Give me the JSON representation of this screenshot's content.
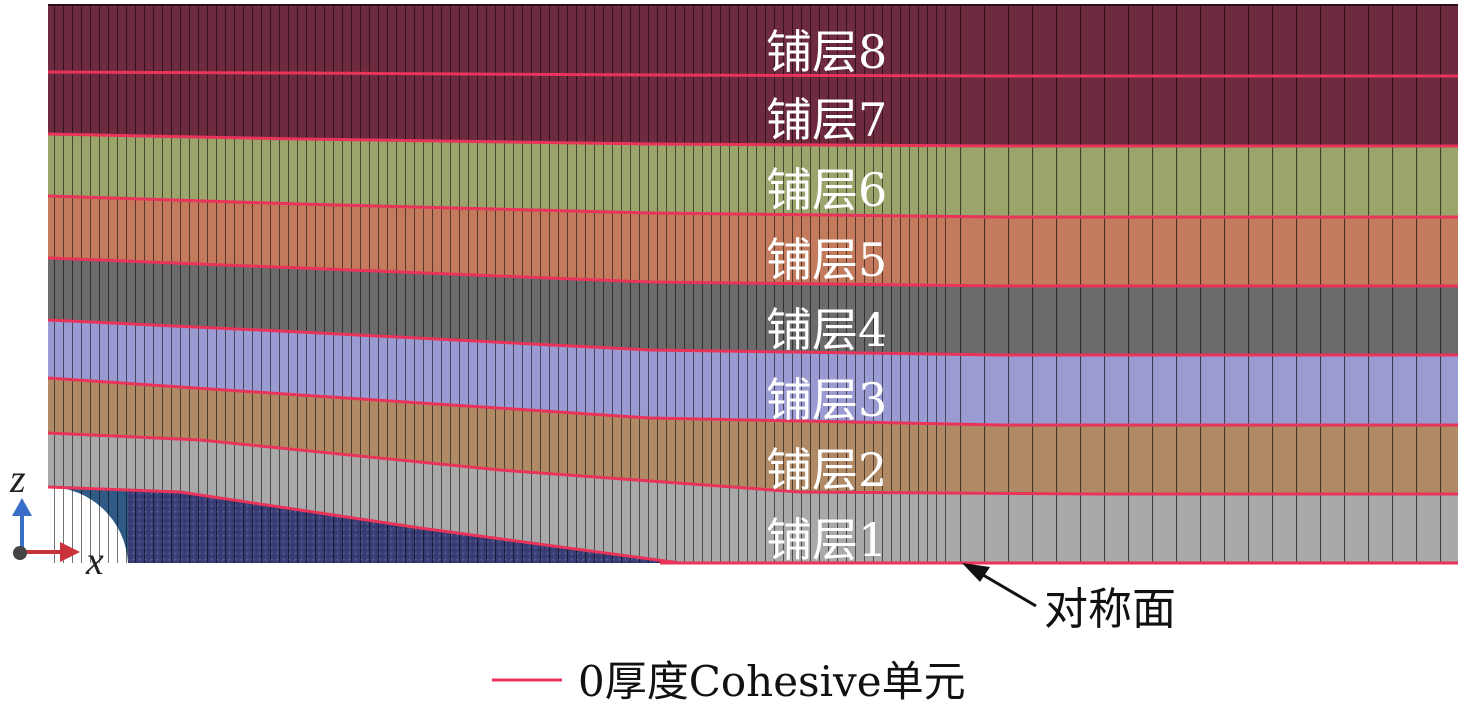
{
  "layers": [
    {
      "label": "铺层1",
      "color": "#2f5a86"
    },
    {
      "label": "铺层2",
      "color": "#a9a9a9"
    },
    {
      "label": "铺层3",
      "color": "#b08a64"
    },
    {
      "label": "铺层4",
      "color": "#9b9bd3"
    },
    {
      "label": "铺层5",
      "color": "#6b6b6b"
    },
    {
      "label": "铺层6",
      "color": "#c47a5c"
    },
    {
      "label": "铺层7",
      "color": "#9aa46b"
    },
    {
      "label": "铺层8",
      "color": "#6e2a3e"
    }
  ],
  "filler_color": "#3a3f78",
  "cohesive_color": "#e8335a",
  "axes": {
    "z_label": "z",
    "x_label": "x",
    "z_color": "#3a6fc9",
    "x_color": "#c8323a"
  },
  "annotation": {
    "text": "对称面"
  },
  "legend": {
    "text": "0厚度Cohesive单元"
  }
}
